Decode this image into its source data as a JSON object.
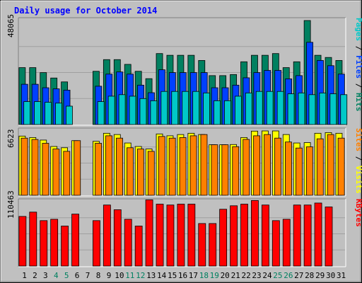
{
  "chart_data": {
    "type": "bar",
    "title": "Daily usage for October 2014",
    "categories": [
      "1",
      "2",
      "3",
      "4",
      "5",
      "6",
      "7",
      "8",
      "9",
      "10",
      "11",
      "12",
      "13",
      "14",
      "15",
      "16",
      "17",
      "18",
      "19",
      "20",
      "21",
      "22",
      "23",
      "24",
      "25",
      "26",
      "27",
      "28",
      "29",
      "30",
      "31"
    ],
    "weekend_days": [
      "4",
      "5",
      "11",
      "12",
      "18",
      "19",
      "25",
      "26"
    ],
    "panels": [
      {
        "max_label": "48065",
        "ymax": 48065,
        "ylabel_parts": [
          {
            "text": "Pages",
            "color": "#00c8c8"
          },
          {
            "text": " / ",
            "color": "#000000"
          },
          {
            "text": "Files",
            "color": "#0040ff"
          },
          {
            "text": " / ",
            "color": "#000000"
          },
          {
            "text": "Hits",
            "color": "#008060"
          }
        ],
        "series": [
          {
            "name": "Hits",
            "color": "#008060",
            "values": [
              26300,
              26300,
              24000,
              21500,
              19700,
              0,
              0,
              24600,
              30000,
              30000,
              27800,
              24600,
              21200,
              32800,
              32000,
              32000,
              32000,
              29600,
              22600,
              22600,
              23100,
              29000,
              32000,
              32000,
              32800,
              26300,
              29000,
              48065,
              32000,
              31000,
              29600
            ]
          },
          {
            "name": "Files",
            "color": "#0040ff",
            "values": [
              18600,
              18600,
              17000,
              16500,
              15900,
              0,
              0,
              17700,
              23300,
              24300,
              23300,
              18200,
              14700,
              25300,
              24000,
              24000,
              24000,
              24000,
              17000,
              17000,
              18200,
              21600,
              24000,
              25000,
              25000,
              21100,
              22600,
              38000,
              29600,
              27200,
              23300
            ]
          },
          {
            "name": "Pages",
            "color": "#00c8c8",
            "values": [
              10600,
              10600,
              10300,
              9900,
              8500,
              0,
              0,
              10600,
              13100,
              13800,
              13100,
              12000,
              11000,
              15300,
              15300,
              15300,
              15300,
              14600,
              11000,
              11000,
              13100,
              14600,
              15300,
              15300,
              15300,
              14200,
              14600,
              13800,
              14600,
              14200,
              13800
            ]
          }
        ]
      },
      {
        "max_label": "6623",
        "ymax": 6623,
        "ylabel_parts": [
          {
            "text": "Sites",
            "color": "#ff8000"
          },
          {
            "text": " / ",
            "color": "#000000"
          },
          {
            "text": "Visits",
            "color": "#ffff00"
          }
        ],
        "series": [
          {
            "name": "Visits",
            "color": "#ffff00",
            "values": [
              6090,
              5940,
              5680,
              5020,
              4890,
              5620,
              0,
              5550,
              6380,
              6250,
              5380,
              5020,
              4760,
              6310,
              6120,
              6250,
              6380,
              6250,
              5200,
              5200,
              5220,
              5940,
              6600,
              6620,
              6620,
              6250,
              5380,
              5420,
              6380,
              6450,
              6380
            ]
          },
          {
            "name": "Sites",
            "color": "#ff8000",
            "values": [
              5880,
              5740,
              5350,
              4760,
              4520,
              5620,
              0,
              5350,
              6120,
              5880,
              4890,
              4760,
              4520,
              6050,
              5880,
              5940,
              6120,
              6250,
              5200,
              5200,
              5000,
              5750,
              6120,
              6250,
              5880,
              5480,
              4860,
              4980,
              5810,
              6250,
              5880
            ]
          }
        ]
      },
      {
        "max_label": "110463",
        "ymax": 110463,
        "ylabel_parts": [
          {
            "text": "KBytes",
            "color": "#ff0000"
          }
        ],
        "series": [
          {
            "name": "KBytes",
            "color": "#ff0000",
            "values": [
              85100,
              92500,
              77900,
              80200,
              68600,
              89100,
              0,
              77900,
              104700,
              96600,
              80200,
              68600,
              113500,
              106200,
              104700,
              106200,
              106200,
              72900,
              72900,
              97400,
              103400,
              106200,
              112400,
              104700,
              77900,
              80200,
              104700,
              104700,
              108100,
              101400,
              0
            ]
          }
        ]
      }
    ]
  }
}
